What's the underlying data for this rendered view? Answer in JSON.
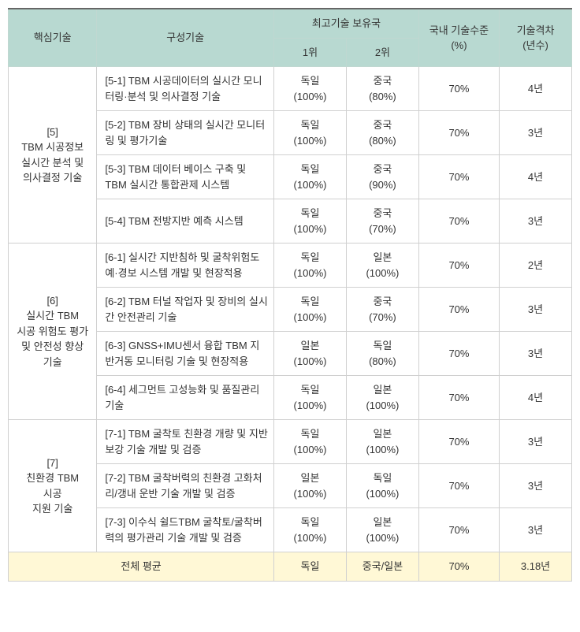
{
  "headers": {
    "core_tech": "핵심기술",
    "component_tech": "구성기술",
    "top_country": "최고기술 보유국",
    "rank1": "1위",
    "rank2": "2위",
    "domestic_level": "국내 기술수준\n(%)",
    "tech_gap": "기술격차\n(년수)"
  },
  "groups": [
    {
      "core": "[5]\nTBM 시공정보\n실시간 분석 및\n의사결정 기술",
      "rows": [
        {
          "desc": "[5-1] TBM 시공데이터의 실시간 모니터링·분석 및 의사결정 기술",
          "r1": "독일\n(100%)",
          "r2": "중국\n(80%)",
          "level": "70%",
          "gap": "4년"
        },
        {
          "desc": "[5-2] TBM 장비 상태의 실시간 모니터링 및 평가기술",
          "r1": "독일\n(100%)",
          "r2": "중국\n(80%)",
          "level": "70%",
          "gap": "3년"
        },
        {
          "desc": "[5-3] TBM 데이터 베이스 구축 및 TBM 실시간 통합관제 시스템",
          "r1": "독일\n(100%)",
          "r2": "중국\n(90%)",
          "level": "70%",
          "gap": "4년"
        },
        {
          "desc": "[5-4] TBM 전방지반 예측 시스템",
          "r1": "독일\n(100%)",
          "r2": "중국\n(70%)",
          "level": "70%",
          "gap": "3년"
        }
      ]
    },
    {
      "core": "[6]\n실시간 TBM\n시공 위험도 평가\n및 안전성 향상\n기술",
      "rows": [
        {
          "desc": "[6-1] 실시간 지반침하 및 굴착위험도 예·경보 시스템 개발 및 현장적용",
          "r1": "독일\n(100%)",
          "r2": "일본\n(100%)",
          "level": "70%",
          "gap": "2년"
        },
        {
          "desc": "[6-2] TBM 터널 작업자 및 장비의 실시간 안전관리 기술",
          "r1": "독일\n(100%)",
          "r2": "중국\n(70%)",
          "level": "70%",
          "gap": "3년"
        },
        {
          "desc": "[6-3] GNSS+IMU센서 융합 TBM 지반거동 모니터링 기술 및 현장적용",
          "r1": "일본\n(100%)",
          "r2": "독일\n(80%)",
          "level": "70%",
          "gap": "3년"
        },
        {
          "desc": "[6-4] 세그먼트 고성능화 및 품질관리 기술",
          "r1": "독일\n(100%)",
          "r2": "일본\n(100%)",
          "level": "70%",
          "gap": "4년"
        }
      ]
    },
    {
      "core": "[7]\n친환경 TBM\n시공\n지원 기술",
      "rows": [
        {
          "desc": "[7-1] TBM 굴착토 친환경 개량 및 지반보강 기술 개발 및 검증",
          "r1": "독일\n(100%)",
          "r2": "일본\n(100%)",
          "level": "70%",
          "gap": "3년"
        },
        {
          "desc": "[7-2] TBM 굴착버력의 친환경 고화처리/갱내 운반 기술 개발 및 검증",
          "r1": "일본\n(100%)",
          "r2": "독일\n(100%)",
          "level": "70%",
          "gap": "3년"
        },
        {
          "desc": "[7-3] 이수식 쉴드TBM 굴착토/굴착버력의 평가관리 기술 개발 및 검증",
          "r1": "독일\n(100%)",
          "r2": "일본\n(100%)",
          "level": "70%",
          "gap": "3년"
        }
      ]
    }
  ],
  "summary": {
    "label": "전체 평균",
    "r1": "독일",
    "r2": "중국/일본",
    "level": "70%",
    "gap": "3.18년"
  }
}
